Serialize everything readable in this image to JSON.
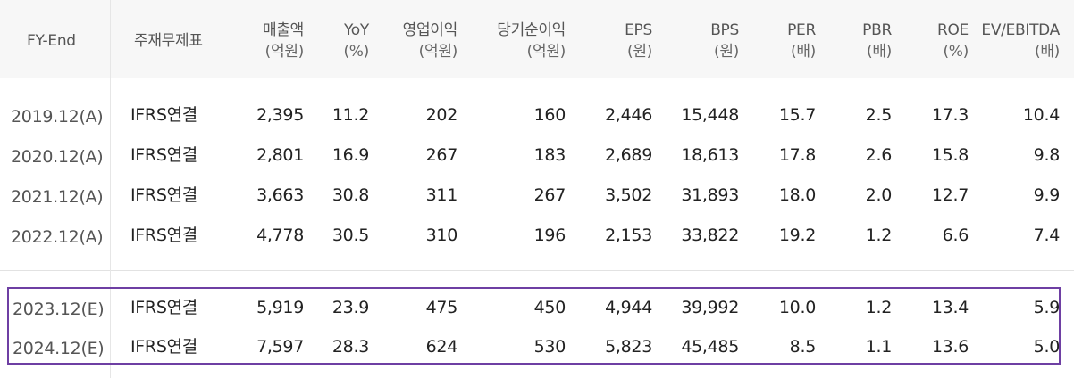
{
  "header": {
    "fy": "FY-End",
    "stmt": "주재무제표",
    "cols": [
      {
        "t1": "매출액",
        "t2": "(억원)"
      },
      {
        "t1": "YoY",
        "t2": "(%)"
      },
      {
        "t1": "영업이익",
        "t2": "(억원)"
      },
      {
        "t1": "당기순이익",
        "t2": "(억원)"
      },
      {
        "t1": "EPS",
        "t2": "(원)"
      },
      {
        "t1": "BPS",
        "t2": "(원)"
      },
      {
        "t1": "PER",
        "t2": "(배)"
      },
      {
        "t1": "PBR",
        "t2": "(배)"
      },
      {
        "t1": "ROE",
        "t2": "(%)"
      },
      {
        "t1": "EV/EBITDA",
        "t2": "(배)"
      }
    ]
  },
  "rows": [
    {
      "fy": "2019.12(A)",
      "stmt": "IFRS연결",
      "v": [
        "2,395",
        "11.2",
        "202",
        "160",
        "2,446",
        "15,448",
        "15.7",
        "2.5",
        "17.3",
        "10.4"
      ]
    },
    {
      "fy": "2020.12(A)",
      "stmt": "IFRS연결",
      "v": [
        "2,801",
        "16.9",
        "267",
        "183",
        "2,689",
        "18,613",
        "17.8",
        "2.6",
        "15.8",
        "9.8"
      ]
    },
    {
      "fy": "2021.12(A)",
      "stmt": "IFRS연결",
      "v": [
        "3,663",
        "30.8",
        "311",
        "267",
        "3,502",
        "31,893",
        "18.0",
        "2.0",
        "12.7",
        "9.9"
      ]
    },
    {
      "fy": "2022.12(A)",
      "stmt": "IFRS연결",
      "v": [
        "4,778",
        "30.5",
        "310",
        "196",
        "2,153",
        "33,822",
        "19.2",
        "1.2",
        "6.6",
        "7.4"
      ]
    },
    {
      "fy": "2023.12(E)",
      "stmt": "IFRS연결",
      "v": [
        "5,919",
        "23.9",
        "475",
        "450",
        "4,944",
        "39,992",
        "10.0",
        "1.2",
        "13.4",
        "5.9"
      ]
    },
    {
      "fy": "2024.12(E)",
      "stmt": "IFRS연결",
      "v": [
        "7,597",
        "28.3",
        "624",
        "530",
        "5,823",
        "45,485",
        "8.5",
        "1.1",
        "13.6",
        "5.0"
      ]
    }
  ],
  "colors": {
    "highlight_border": "#6e3fa3",
    "header_bg": "#f7f7f7"
  }
}
